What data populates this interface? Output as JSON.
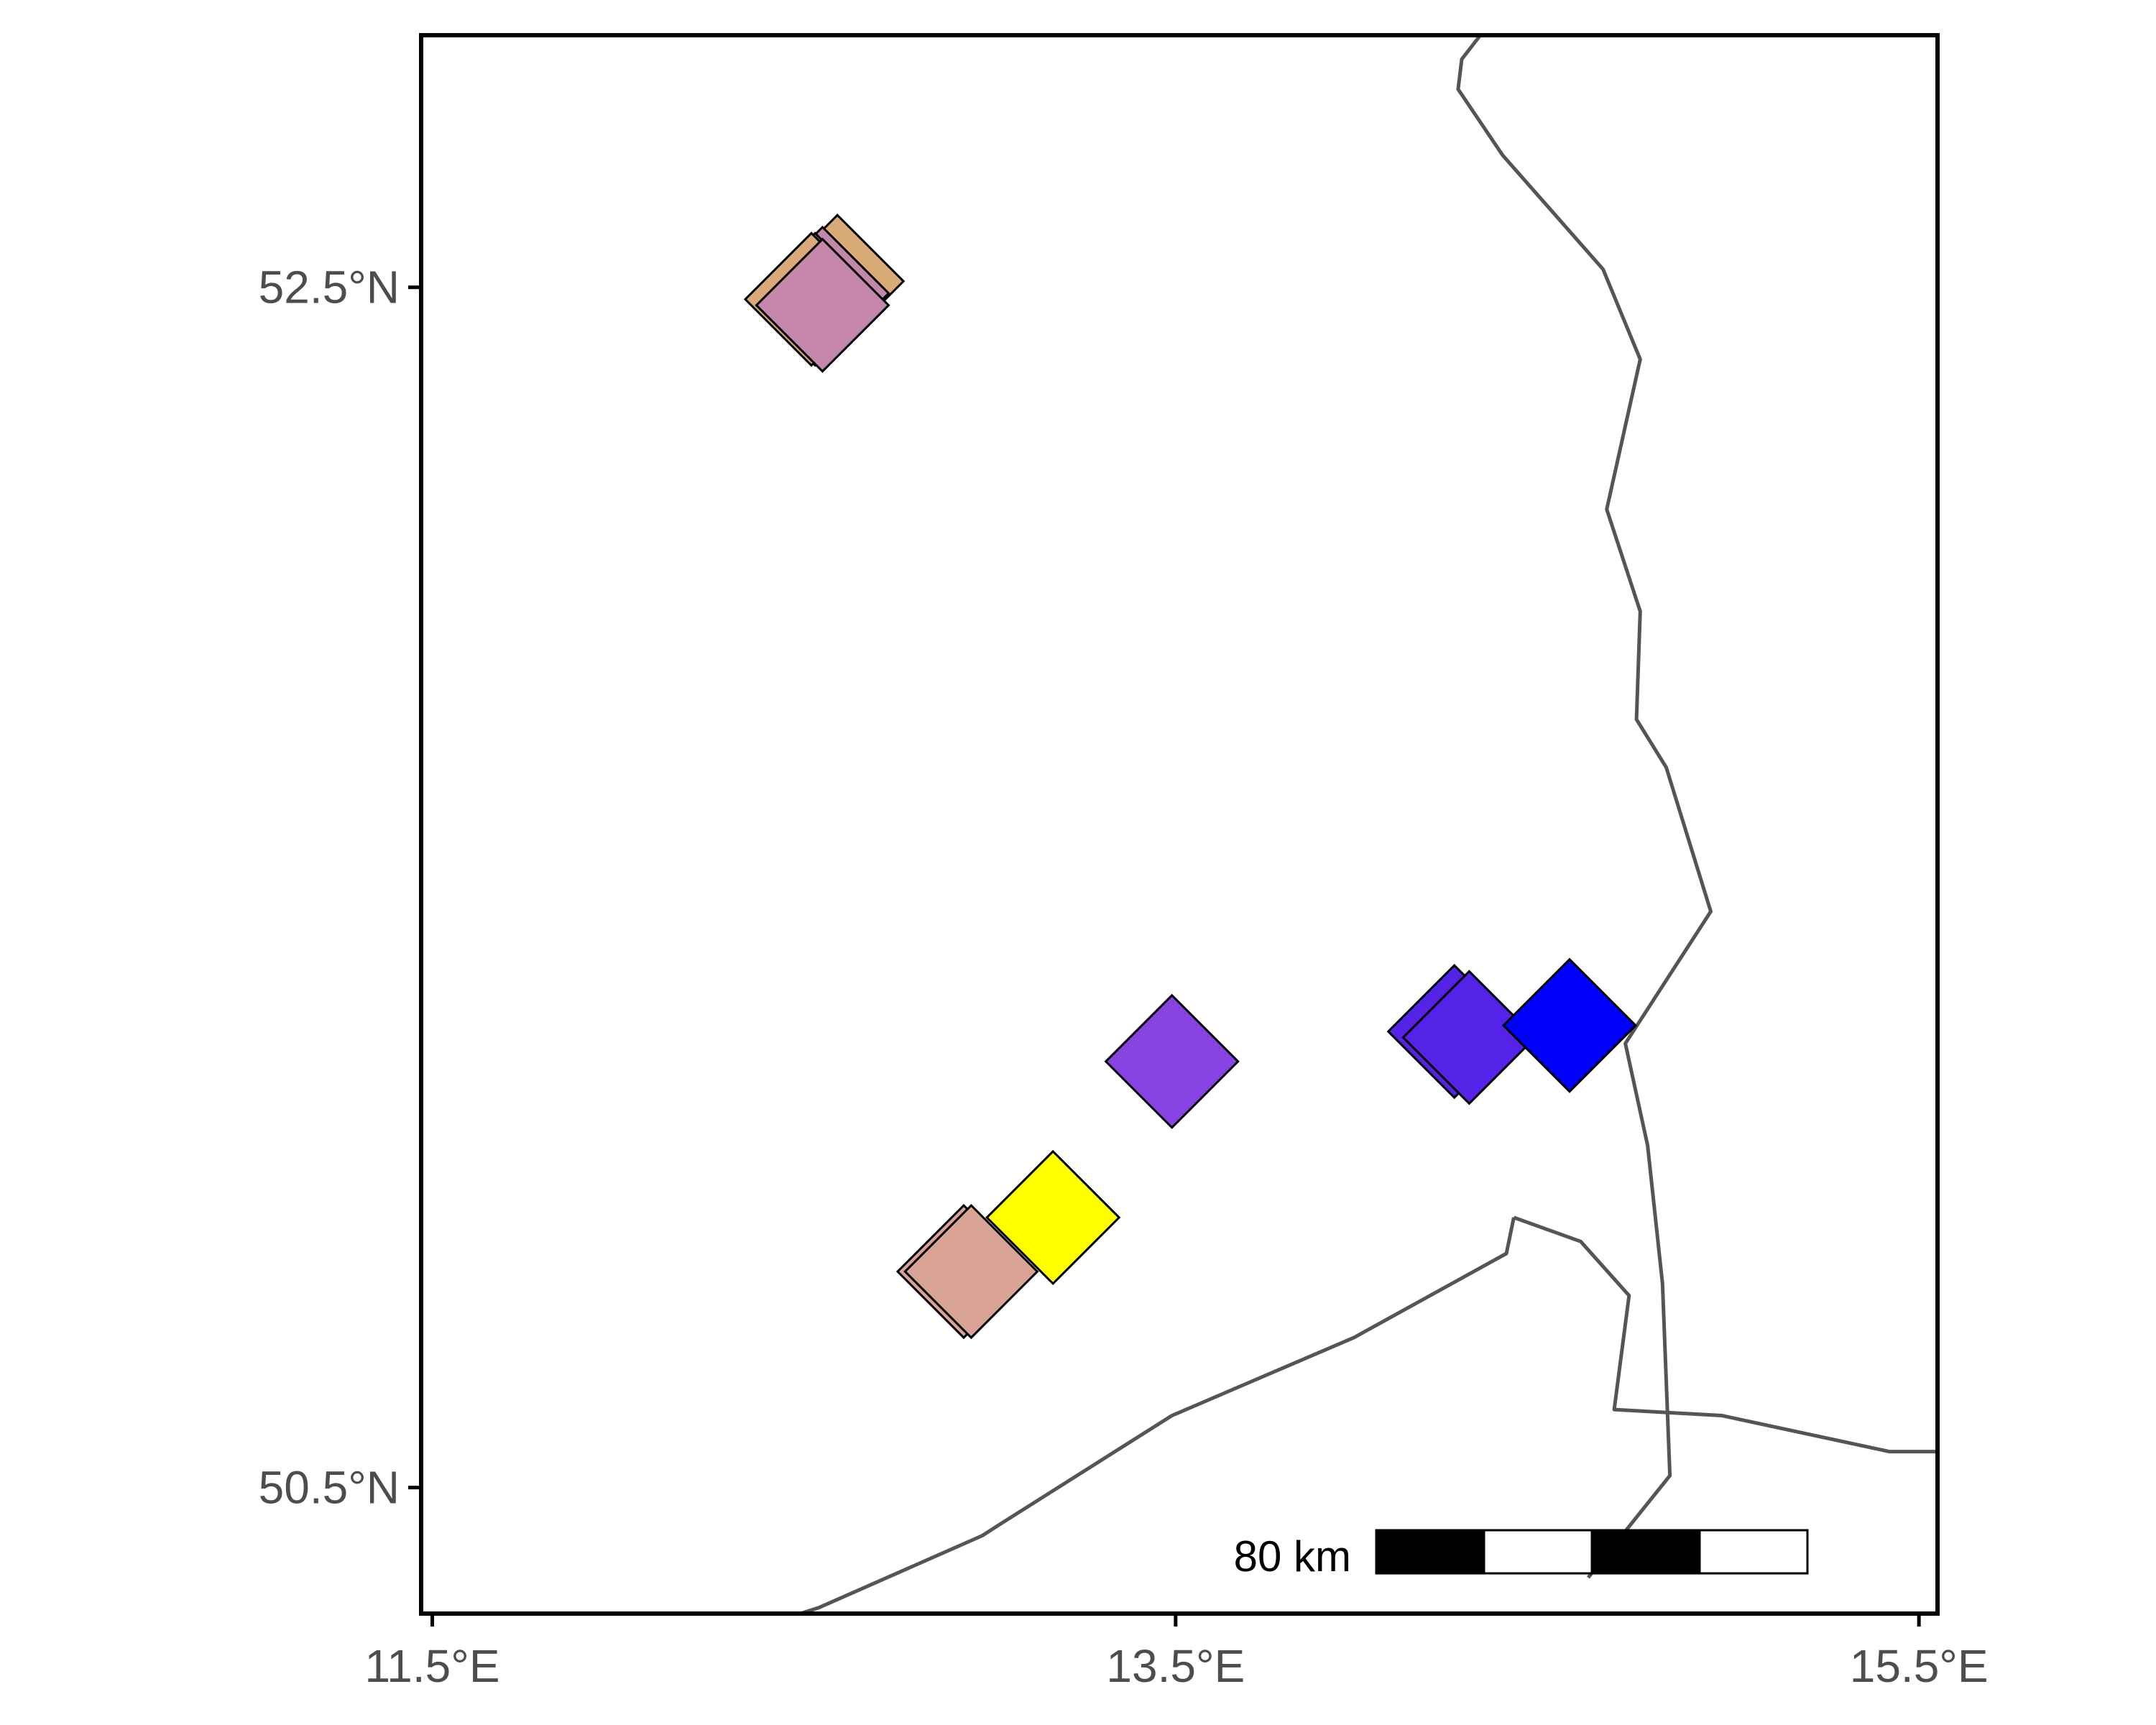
{
  "map": {
    "extent": {
      "lon": [
        11.47,
        15.55
      ],
      "lat": [
        50.29,
        52.92
      ]
    },
    "x_ticks": [
      {
        "value": 11.5,
        "label": "11.5°E"
      },
      {
        "value": 13.5,
        "label": "13.5°E"
      },
      {
        "value": 15.5,
        "label": "15.5°E"
      }
    ],
    "y_ticks": [
      {
        "value": 52.5,
        "label": "52.5°N"
      },
      {
        "value": 50.5,
        "label": "50.5°N"
      }
    ],
    "colors": {
      "border": "#555555",
      "frame": "#000000",
      "tick": "#4d4d4d"
    },
    "scale_bar": {
      "label": "80 km",
      "segments": [
        "black",
        "white",
        "black",
        "white"
      ]
    },
    "borders": [
      [
        [
          14.32,
          52.92
        ],
        [
          14.27,
          52.88
        ],
        [
          14.26,
          52.83
        ],
        [
          14.38,
          52.72
        ],
        [
          14.65,
          52.53
        ],
        [
          14.75,
          52.38
        ],
        [
          14.66,
          52.13
        ],
        [
          14.75,
          51.96
        ],
        [
          14.74,
          51.78
        ],
        [
          14.82,
          51.7
        ],
        [
          14.94,
          51.46
        ],
        [
          14.71,
          51.24
        ],
        [
          14.77,
          51.07
        ],
        [
          14.81,
          50.84
        ],
        [
          14.83,
          50.52
        ],
        [
          14.61,
          50.35
        ]
      ],
      [
        [
          14.41,
          50.95
        ],
        [
          14.59,
          50.91
        ],
        [
          14.72,
          50.82
        ],
        [
          14.68,
          50.63
        ],
        [
          14.97,
          50.62
        ],
        [
          15.42,
          50.56
        ],
        [
          15.55,
          50.56
        ]
      ],
      [
        [
          12.49,
          50.29
        ],
        [
          12.54,
          50.3
        ],
        [
          12.98,
          50.42
        ],
        [
          13.03,
          50.44
        ],
        [
          13.49,
          50.62
        ],
        [
          13.98,
          50.75
        ],
        [
          14.39,
          50.89
        ],
        [
          14.41,
          50.95
        ]
      ]
    ]
  },
  "chart_data": {
    "type": "scatter",
    "marker": "diamond",
    "points": [
      {
        "lon": 12.59,
        "lat": 52.51,
        "color": "#d8aa78"
      },
      {
        "lon": 12.55,
        "lat": 52.49,
        "color": "#c486aa"
      },
      {
        "lon": 12.53,
        "lat": 52.48,
        "color": "#c486aa"
      },
      {
        "lon": 12.52,
        "lat": 52.48,
        "color": "#d8aa78"
      },
      {
        "lon": 12.55,
        "lat": 52.47,
        "color": "#c486aa"
      },
      {
        "lon": 13.49,
        "lat": 51.21,
        "color": "#8844e2"
      },
      {
        "lon": 14.25,
        "lat": 51.26,
        "color": "#5522e8"
      },
      {
        "lon": 14.29,
        "lat": 51.25,
        "color": "#5522e8"
      },
      {
        "lon": 14.56,
        "lat": 51.27,
        "color": "#0000ff"
      },
      {
        "lon": 13.17,
        "lat": 50.95,
        "color": "#ffff00"
      },
      {
        "lon": 12.93,
        "lat": 50.86,
        "color": "#d8a294"
      },
      {
        "lon": 12.95,
        "lat": 50.86,
        "color": "#d8a294"
      }
    ]
  }
}
